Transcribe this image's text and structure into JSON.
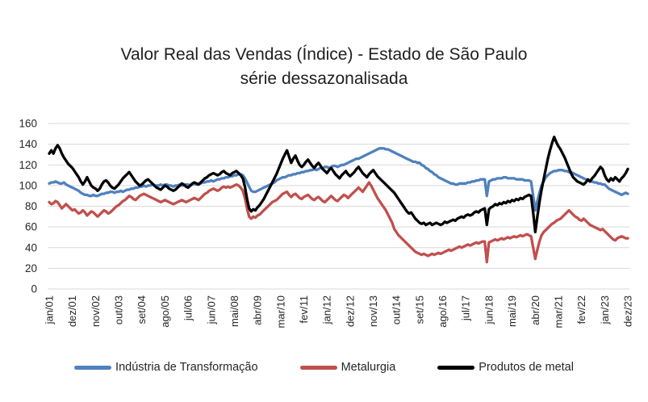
{
  "chart_data": {
    "type": "line",
    "title": "Valor Real das Vendas (Índice) - Estado de São Paulo",
    "subtitle": "série dessazonalisada",
    "xlabel": "",
    "ylabel": "",
    "ylim": [
      0,
      160
    ],
    "y_ticks": [
      0,
      20,
      40,
      60,
      80,
      100,
      120,
      140,
      160
    ],
    "grid": "horizontal-only",
    "gridline_color": "#d9d9d9",
    "text_color": "#262626",
    "legend_position": "bottom",
    "x_unit": "month",
    "x_range_text": "jan/01 a dez/23, mensal",
    "x_tick_every": 11,
    "x_tick_labels": [
      "jan/01",
      "dez/01",
      "nov/02",
      "out/03",
      "set/04",
      "ago/05",
      "jul/06",
      "jun/07",
      "mai/08",
      "abr/09",
      "mar/10",
      "fev/11",
      "jan/12",
      "dez/12",
      "nov/13",
      "out/14",
      "set/15",
      "ago/16",
      "jul/17",
      "jun/18",
      "mai/19",
      "abr/20",
      "mar/21",
      "fev/22",
      "jan/23",
      "dez/23"
    ],
    "series": [
      {
        "name": "Indústria de Transformação",
        "color": "#4F81BD",
        "values": [
          102,
          103,
          103,
          104,
          103,
          102,
          102,
          103,
          101,
          100,
          99,
          98,
          97,
          96,
          95,
          93,
          92,
          91,
          91,
          90,
          90,
          91,
          90,
          90,
          91,
          92,
          92,
          93,
          93,
          94,
          94,
          93,
          94,
          94,
          95,
          94,
          95,
          96,
          96,
          97,
          97,
          98,
          98,
          99,
          99,
          100,
          99,
          100,
          100,
          101,
          100,
          100,
          100,
          101,
          100,
          101,
          101,
          100,
          100,
          99,
          100,
          100,
          101,
          100,
          100,
          101,
          101,
          100,
          101,
          102,
          101,
          102,
          102,
          103,
          103,
          104,
          104,
          105,
          104,
          105,
          106,
          106,
          107,
          107,
          108,
          108,
          109,
          109,
          110,
          110,
          111,
          111,
          110,
          107,
          103,
          99,
          95,
          94,
          94,
          95,
          96,
          97,
          98,
          99,
          100,
          101,
          102,
          103,
          105,
          106,
          107,
          108,
          108,
          109,
          110,
          110,
          111,
          111,
          112,
          112,
          113,
          113,
          114,
          114,
          115,
          115,
          116,
          115,
          116,
          117,
          117,
          118,
          118,
          117,
          118,
          119,
          119,
          118,
          119,
          120,
          120,
          121,
          122,
          123,
          124,
          125,
          126,
          126,
          127,
          128,
          129,
          130,
          131,
          132,
          133,
          134,
          135,
          136,
          136,
          136,
          135,
          135,
          134,
          133,
          132,
          131,
          130,
          129,
          128,
          127,
          126,
          125,
          124,
          123,
          123,
          122,
          122,
          120,
          119,
          117,
          116,
          114,
          113,
          111,
          110,
          108,
          107,
          106,
          105,
          104,
          103,
          102,
          102,
          101,
          101,
          102,
          102,
          102,
          102,
          103,
          103,
          104,
          104,
          105,
          105,
          106,
          106,
          106,
          90,
          104,
          105,
          106,
          106,
          107,
          107,
          107,
          108,
          108,
          107,
          107,
          107,
          107,
          106,
          106,
          106,
          106,
          105,
          105,
          105,
          104,
          90,
          76,
          85,
          93,
          100,
          104,
          108,
          110,
          112,
          113,
          114,
          114,
          115,
          115,
          115,
          114,
          114,
          113,
          113,
          112,
          111,
          110,
          109,
          108,
          107,
          106,
          105,
          104,
          104,
          103,
          103,
          102,
          102,
          101,
          101,
          99,
          97,
          96,
          95,
          94,
          93,
          92,
          91,
          92,
          93,
          92
        ]
      },
      {
        "name": "Metalurgia",
        "color": "#C0504D",
        "values": [
          84,
          82,
          83,
          85,
          84,
          81,
          78,
          80,
          82,
          80,
          78,
          76,
          77,
          75,
          73,
          74,
          76,
          74,
          71,
          73,
          75,
          74,
          72,
          70,
          72,
          74,
          76,
          75,
          73,
          74,
          76,
          78,
          80,
          81,
          83,
          85,
          86,
          88,
          90,
          89,
          87,
          86,
          88,
          90,
          91,
          92,
          91,
          90,
          89,
          88,
          87,
          86,
          85,
          84,
          85,
          86,
          85,
          84,
          83,
          82,
          83,
          84,
          85,
          86,
          85,
          84,
          85,
          86,
          87,
          88,
          87,
          86,
          88,
          90,
          92,
          93,
          95,
          96,
          97,
          96,
          95,
          96,
          98,
          99,
          98,
          99,
          98,
          99,
          100,
          101,
          100,
          98,
          95,
          88,
          78,
          70,
          68,
          70,
          69,
          71,
          72,
          74,
          76,
          78,
          80,
          82,
          84,
          85,
          86,
          88,
          90,
          92,
          93,
          94,
          91,
          89,
          91,
          92,
          90,
          88,
          87,
          89,
          90,
          91,
          89,
          87,
          86,
          88,
          89,
          87,
          85,
          84,
          86,
          88,
          90,
          88,
          86,
          85,
          87,
          89,
          91,
          90,
          88,
          90,
          92,
          94,
          96,
          98,
          96,
          94,
          97,
          100,
          103,
          100,
          96,
          92,
          88,
          85,
          82,
          79,
          76,
          72,
          68,
          64,
          58,
          55,
          52,
          50,
          48,
          46,
          44,
          42,
          40,
          38,
          36,
          35,
          34,
          33,
          34,
          33,
          32,
          33,
          34,
          33,
          34,
          35,
          34,
          35,
          36,
          37,
          38,
          37,
          38,
          39,
          40,
          41,
          40,
          41,
          42,
          43,
          42,
          43,
          44,
          45,
          44,
          45,
          46,
          46,
          26,
          45,
          46,
          47,
          48,
          47,
          48,
          49,
          48,
          49,
          50,
          49,
          50,
          51,
          50,
          51,
          52,
          51,
          52,
          53,
          52,
          51,
          40,
          29,
          38,
          46,
          52,
          55,
          57,
          59,
          61,
          63,
          64,
          66,
          67,
          68,
          70,
          72,
          74,
          76,
          74,
          72,
          70,
          69,
          67,
          66,
          68,
          66,
          64,
          62,
          61,
          60,
          59,
          58,
          57,
          58,
          56,
          54,
          52,
          50,
          48,
          47,
          49,
          50,
          51,
          50,
          49,
          49
        ]
      },
      {
        "name": "Produtos de metal",
        "color": "#000000",
        "values": [
          131,
          134,
          131,
          136,
          139,
          136,
          131,
          127,
          124,
          121,
          119,
          117,
          114,
          111,
          108,
          104,
          101,
          104,
          108,
          104,
          100,
          98,
          97,
          95,
          97,
          101,
          104,
          105,
          103,
          100,
          98,
          97,
          99,
          101,
          104,
          107,
          109,
          111,
          113,
          110,
          107,
          104,
          102,
          100,
          101,
          103,
          105,
          106,
          104,
          102,
          100,
          98,
          97,
          96,
          98,
          100,
          99,
          97,
          96,
          95,
          96,
          98,
          100,
          102,
          101,
          99,
          98,
          100,
          102,
          103,
          102,
          101,
          103,
          105,
          107,
          108,
          110,
          111,
          112,
          111,
          110,
          111,
          113,
          114,
          112,
          111,
          110,
          112,
          113,
          114,
          112,
          110,
          107,
          99,
          87,
          78,
          75,
          77,
          76,
          79,
          81,
          84,
          87,
          91,
          95,
          99,
          103,
          107,
          111,
          116,
          121,
          126,
          130,
          134,
          128,
          122,
          126,
          129,
          124,
          120,
          118,
          120,
          123,
          125,
          122,
          119,
          117,
          120,
          122,
          119,
          116,
          114,
          112,
          115,
          117,
          114,
          111,
          109,
          107,
          110,
          112,
          114,
          111,
          109,
          111,
          113,
          116,
          118,
          115,
          112,
          110,
          108,
          111,
          113,
          115,
          112,
          109,
          107,
          105,
          103,
          101,
          99,
          97,
          95,
          93,
          90,
          87,
          84,
          81,
          78,
          75,
          73,
          74,
          71,
          68,
          66,
          64,
          63,
          64,
          62,
          63,
          64,
          62,
          63,
          64,
          63,
          62,
          63,
          65,
          64,
          65,
          66,
          67,
          66,
          68,
          69,
          70,
          69,
          71,
          72,
          71,
          72,
          74,
          75,
          74,
          76,
          77,
          78,
          62,
          77,
          79,
          80,
          82,
          81,
          83,
          82,
          84,
          83,
          85,
          84,
          86,
          85,
          87,
          86,
          88,
          87,
          89,
          90,
          91,
          90,
          74,
          55,
          70,
          84,
          96,
          106,
          116,
          126,
          134,
          141,
          147,
          142,
          138,
          135,
          131,
          127,
          122,
          117,
          112,
          108,
          106,
          104,
          103,
          102,
          101,
          103,
          106,
          104,
          107,
          109,
          112,
          115,
          118,
          116,
          110,
          106,
          104,
          107,
          105,
          108,
          106,
          104,
          107,
          109,
          112,
          116
        ]
      }
    ]
  }
}
